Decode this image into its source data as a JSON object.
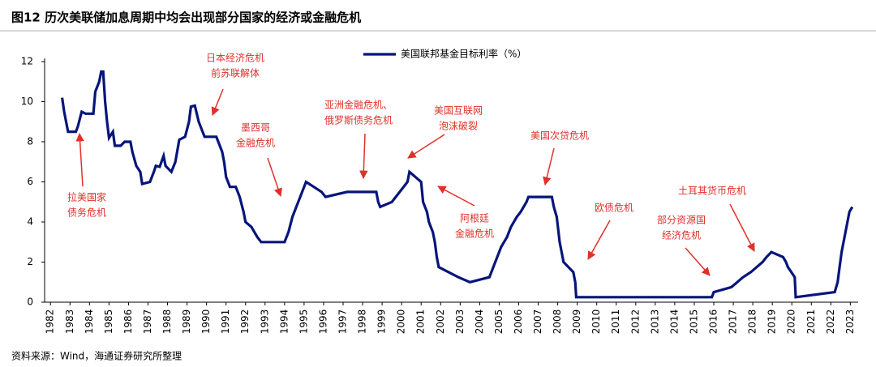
{
  "chart_data": {
    "type": "line",
    "title": "图12 历次美联储加息周期中均会出现部分国家的经济或金融危机",
    "source": "资料来源：Wind，海通证券研究所整理",
    "xlim": [
      1981.7,
      2023.4
    ],
    "xticks": [
      1982,
      1983,
      1984,
      1985,
      1986,
      1987,
      1988,
      1989,
      1990,
      1991,
      1992,
      1993,
      1994,
      1995,
      1996,
      1997,
      1998,
      1999,
      2000,
      2001,
      2002,
      2003,
      2004,
      2005,
      2006,
      2007,
      2008,
      2009,
      2010,
      2011,
      2012,
      2013,
      2014,
      2015,
      2016,
      2017,
      2018,
      2019,
      2020,
      2021,
      2022,
      2023
    ],
    "ylim": [
      0,
      12
    ],
    "yticks": [
      0,
      2,
      4,
      6,
      8,
      10,
      12
    ],
    "legend": "top",
    "x": [
      1982.6,
      1982.7,
      1982.9,
      1983.3,
      1983.4,
      1983.6,
      1983.8,
      1984.2,
      1984.3,
      1984.5,
      1984.6,
      1984.7,
      1984.8,
      1984.9,
      1985.0,
      1985.2,
      1985.3,
      1985.6,
      1985.8,
      1986.1,
      1986.2,
      1986.4,
      1986.6,
      1986.7,
      1987.1,
      1987.3,
      1987.4,
      1987.6,
      1987.8,
      1987.9,
      1988.2,
      1988.4,
      1988.6,
      1988.9,
      1989.1,
      1989.2,
      1989.4,
      1989.6,
      1989.9,
      1990.5,
      1990.6,
      1990.8,
      1990.9,
      1991.0,
      1991.2,
      1991.5,
      1991.7,
      1991.9,
      1992.0,
      1992.3,
      1992.6,
      1992.8,
      1994.0,
      1994.2,
      1994.4,
      1994.6,
      1994.9,
      1995.1,
      1995.5,
      1995.9,
      1996.1,
      1997.2,
      1998.7,
      1998.8,
      1998.9,
      1999.5,
      1999.7,
      1999.9,
      2000.1,
      2000.3,
      2000.4,
      2001.0,
      2001.1,
      2001.3,
      2001.4,
      2001.6,
      2001.7,
      2001.8,
      2001.9,
      2002.9,
      2003.5,
      2004.5,
      2004.7,
      2004.9,
      2005.1,
      2005.4,
      2005.6,
      2005.9,
      2006.1,
      2006.4,
      2006.5,
      2007.7,
      2007.8,
      2007.95,
      2008.1,
      2008.3,
      2008.8,
      2008.9,
      2008.95,
      2015.9,
      2016.0,
      2016.9,
      2017.2,
      2017.5,
      2017.9,
      2018.2,
      2018.5,
      2018.7,
      2018.95,
      2019.55,
      2019.7,
      2019.8,
      2020.15,
      2020.2,
      2022.2,
      2022.35,
      2022.45,
      2022.55,
      2022.7,
      2022.85,
      2022.95,
      2023.1
    ],
    "series": [
      {
        "name": "美国联邦基金目标利率（%）",
        "color": "#06157a",
        "values": [
          10.2,
          9.5,
          8.5,
          8.5,
          8.75,
          9.5,
          9.4,
          9.4,
          10.5,
          11.0,
          11.5,
          11.5,
          10.0,
          9.0,
          8.2,
          8.5,
          7.8,
          7.8,
          8.0,
          8.0,
          7.5,
          6.8,
          6.5,
          5.9,
          6.0,
          6.5,
          6.8,
          6.75,
          7.3,
          6.8,
          6.5,
          7.0,
          8.1,
          8.25,
          9.0,
          9.75,
          9.8,
          9.0,
          8.25,
          8.25,
          8.0,
          7.5,
          7.0,
          6.25,
          5.75,
          5.75,
          5.25,
          4.5,
          4.0,
          3.75,
          3.25,
          3.0,
          3.0,
          3.5,
          4.25,
          4.75,
          5.5,
          6.0,
          5.75,
          5.5,
          5.25,
          5.5,
          5.5,
          5.0,
          4.75,
          5.0,
          5.25,
          5.5,
          5.75,
          6.0,
          6.5,
          6.0,
          5.0,
          4.5,
          4.0,
          3.5,
          3.0,
          2.25,
          1.75,
          1.25,
          1.0,
          1.25,
          1.75,
          2.25,
          2.75,
          3.25,
          3.75,
          4.25,
          4.5,
          5.0,
          5.25,
          5.25,
          4.75,
          4.25,
          3.0,
          2.0,
          1.5,
          1.0,
          0.25,
          0.25,
          0.5,
          0.75,
          1.0,
          1.25,
          1.5,
          1.75,
          2.0,
          2.25,
          2.5,
          2.25,
          2.0,
          1.75,
          1.25,
          0.25,
          0.5,
          1.0,
          1.75,
          2.5,
          3.25,
          4.0,
          4.5,
          4.75
        ]
      }
    ],
    "annotations": [
      {
        "lines": [
          "日本经济危机",
          "前苏联解体"
        ]
      },
      {
        "lines": [
          "墨西哥",
          "金融危机"
        ]
      },
      {
        "lines": [
          "亚洲金融危机、",
          "俄罗斯债务危机"
        ]
      },
      {
        "lines": [
          "美国互联网",
          "泡沫破裂"
        ]
      },
      {
        "lines": [
          "阿根廷",
          "金融危机"
        ]
      },
      {
        "lines": [
          "美国次贷危机"
        ]
      },
      {
        "lines": [
          "欧债危机"
        ]
      },
      {
        "lines": [
          "部分资源国",
          "经济危机"
        ]
      },
      {
        "lines": [
          "土耳其货币危机"
        ]
      },
      {
        "lines": [
          "拉美国家",
          "债务危机"
        ]
      }
    ]
  }
}
